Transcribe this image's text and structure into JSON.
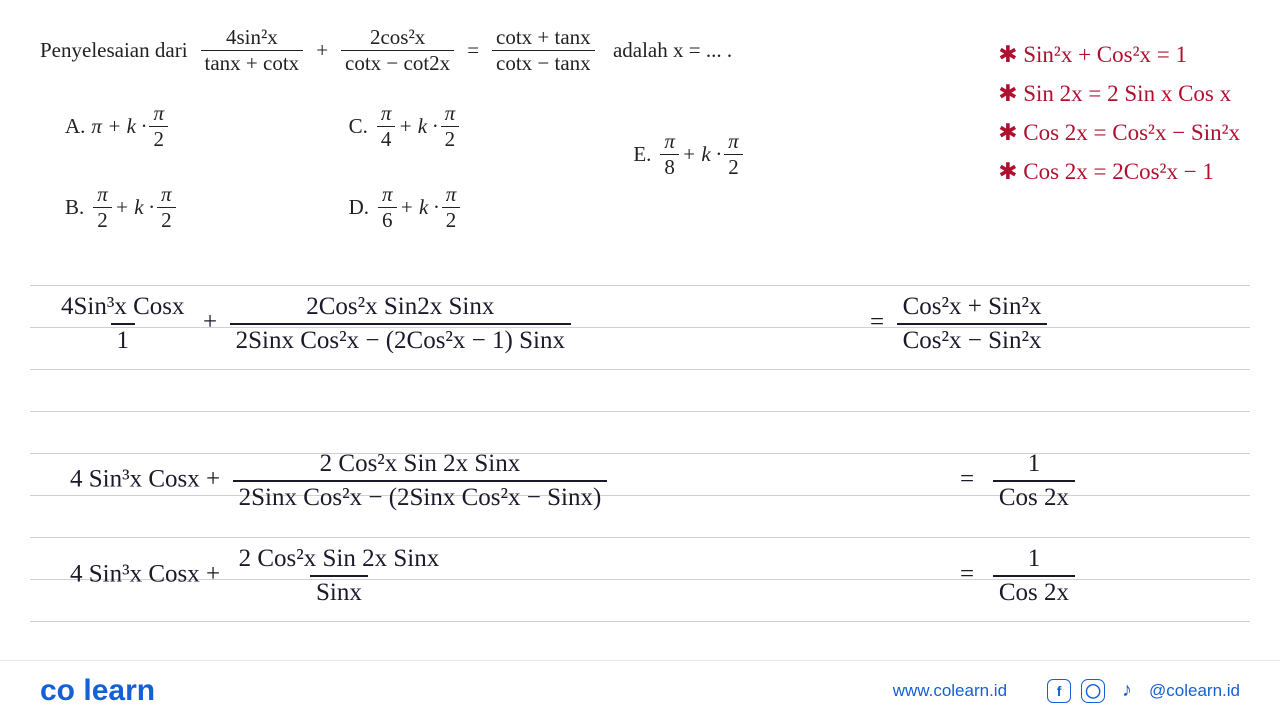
{
  "problem": {
    "lead": "Penyelesaian dari",
    "lhs_frac1_num": "4sin²x",
    "lhs_frac1_den": "tanx + cotx",
    "plus": "+",
    "lhs_frac2_num": "2cos²x",
    "lhs_frac2_den": "cotx − cot2x",
    "equals": "=",
    "rhs_num": "cotx + tanx",
    "rhs_den": "cotx − tanx",
    "trail": "adalah x = ... ."
  },
  "options": {
    "A": {
      "label": "A.",
      "expr_pre": "π + k · ",
      "frac_num": "π",
      "frac_den": "2"
    },
    "B": {
      "label": "B.",
      "pre_num": "π",
      "pre_den": "2",
      "mid": " + k · ",
      "frac_num": "π",
      "frac_den": "2"
    },
    "C": {
      "label": "C.",
      "pre_num": "π",
      "pre_den": "4",
      "mid": " + k · ",
      "frac_num": "π",
      "frac_den": "2"
    },
    "D": {
      "label": "D.",
      "pre_num": "π",
      "pre_den": "6",
      "mid": " + k · ",
      "frac_num": "π",
      "frac_den": "2"
    },
    "E": {
      "label": "E.",
      "pre_num": "π",
      "pre_den": "8",
      "mid": " + k · ",
      "frac_num": "π",
      "frac_den": "2"
    }
  },
  "identities": {
    "color": "#b01030",
    "line1": "✱ Sin²x + Cos²x = 1",
    "line2": "✱ Sin 2x = 2 Sin x  Cos x",
    "line3": "✱ Cos 2x = Cos²x − Sin²x",
    "line4": "✱ Cos 2x = 2Cos²x − 1"
  },
  "work": {
    "ruled_line_color": "#d0d0d0",
    "ruled_lines_y": [
      0,
      42,
      84,
      126,
      168,
      210,
      252,
      294,
      336
    ],
    "line1_term1_num": "4Sin³x Cosx",
    "line1_term1_den": "1",
    "line1_plus": "+",
    "line1_term2_num": "2Cos²x Sin2x Sinx",
    "line1_term2_den": "2Sinx Cos²x − (2Cos²x − 1) Sinx",
    "line1_eq": "=",
    "line1_rhs_num": "Cos²x + Sin²x",
    "line1_rhs_den": "Cos²x − Sin²x",
    "line2_lhs": "4 Sin³x Cosx +",
    "line2_frac_num": "2 Cos²x Sin 2x  Sinx",
    "line2_frac_den": "2Sinx Cos²x − (2Sinx Cos²x − Sinx)",
    "line2_eq": "=",
    "line2_rhs_num": "1",
    "line2_rhs_den": "Cos 2x",
    "line3_lhs": "4 Sin³x Cosx +",
    "line3_frac_num": "2 Cos²x Sin 2x  Sinx",
    "line3_frac_den": "Sinx",
    "line3_eq": "=",
    "line3_rhs_num": "1",
    "line3_rhs_den": "Cos 2x"
  },
  "footer": {
    "logo_pre": "co",
    "logo_post": "learn",
    "url": "www.colearn.id",
    "handle": "@colearn.id"
  }
}
